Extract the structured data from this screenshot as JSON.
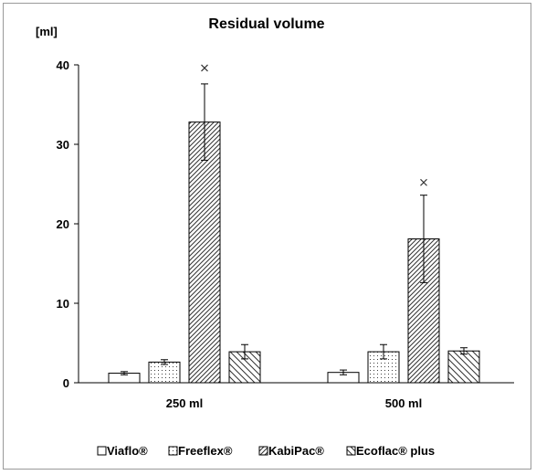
{
  "chart_data": {
    "type": "bar",
    "title": "Residual volume",
    "ylabel": "[ml]",
    "xlabel": "",
    "ylim": [
      0,
      40
    ],
    "yticks": [
      0,
      10,
      20,
      30,
      40
    ],
    "categories": [
      "250 ml",
      "500 ml"
    ],
    "legend_position": "bottom",
    "grid": false,
    "series": [
      {
        "name": "Viaflo®",
        "pattern": "none",
        "values": [
          1.2,
          1.3
        ],
        "error": [
          0.2,
          0.3
        ],
        "outliers": [
          null,
          null
        ]
      },
      {
        "name": "Freeflex®",
        "pattern": "dots",
        "values": [
          2.6,
          3.9
        ],
        "error": [
          0.3,
          0.9
        ],
        "outliers": [
          null,
          null
        ]
      },
      {
        "name": "KabiPac®",
        "pattern": "diagonal-dense",
        "values": [
          32.8,
          18.1
        ],
        "error": [
          4.8,
          5.5
        ],
        "outliers": [
          39.6,
          25.2
        ]
      },
      {
        "name": "Ecoflac® plus",
        "pattern": "diagonal-sparse",
        "values": [
          3.9,
          4.0
        ],
        "error": [
          0.9,
          0.4
        ],
        "outliers": [
          null,
          null
        ]
      }
    ]
  }
}
